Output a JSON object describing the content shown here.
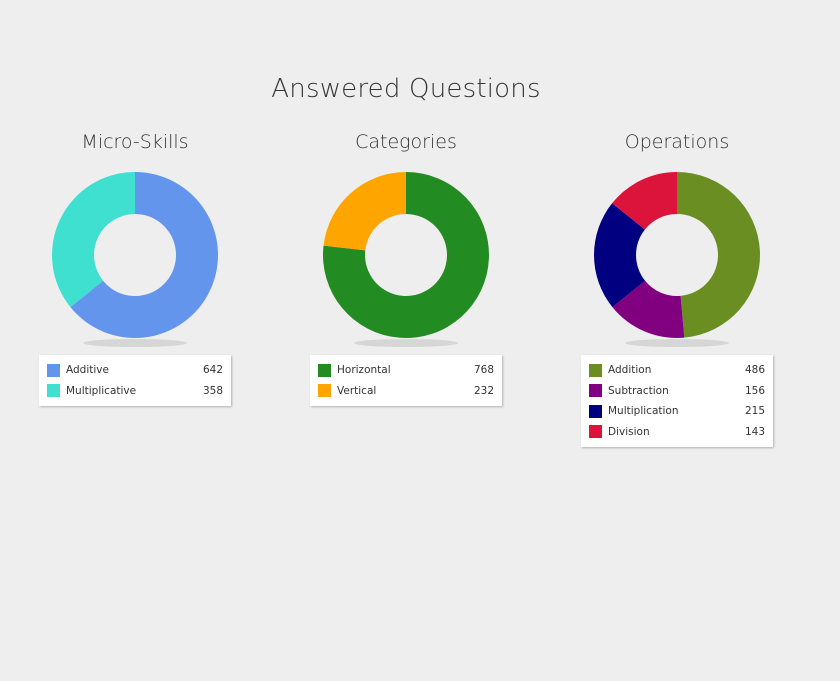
{
  "page_title": "Answered Questions",
  "chart_data": [
    {
      "type": "pie",
      "title": "Micro-Skills",
      "categories": [
        "Additive",
        "Multiplicative"
      ],
      "values": [
        642,
        358
      ],
      "colors": [
        "#6495ed",
        "#40e0d0"
      ],
      "legend_placement": "bottom"
    },
    {
      "type": "pie",
      "title": "Categories",
      "categories": [
        "Horizontal",
        "Vertical"
      ],
      "values": [
        768,
        232
      ],
      "colors": [
        "#228b22",
        "#ffa500"
      ],
      "legend_placement": "bottom"
    },
    {
      "type": "pie",
      "title": "Operations",
      "categories": [
        "Addition",
        "Subtraction",
        "Multiplication",
        "Division"
      ],
      "values": [
        486,
        156,
        215,
        143
      ],
      "colors": [
        "#6b8e23",
        "#800080",
        "#000080",
        "#dc143c"
      ],
      "legend_placement": "bottom"
    }
  ]
}
